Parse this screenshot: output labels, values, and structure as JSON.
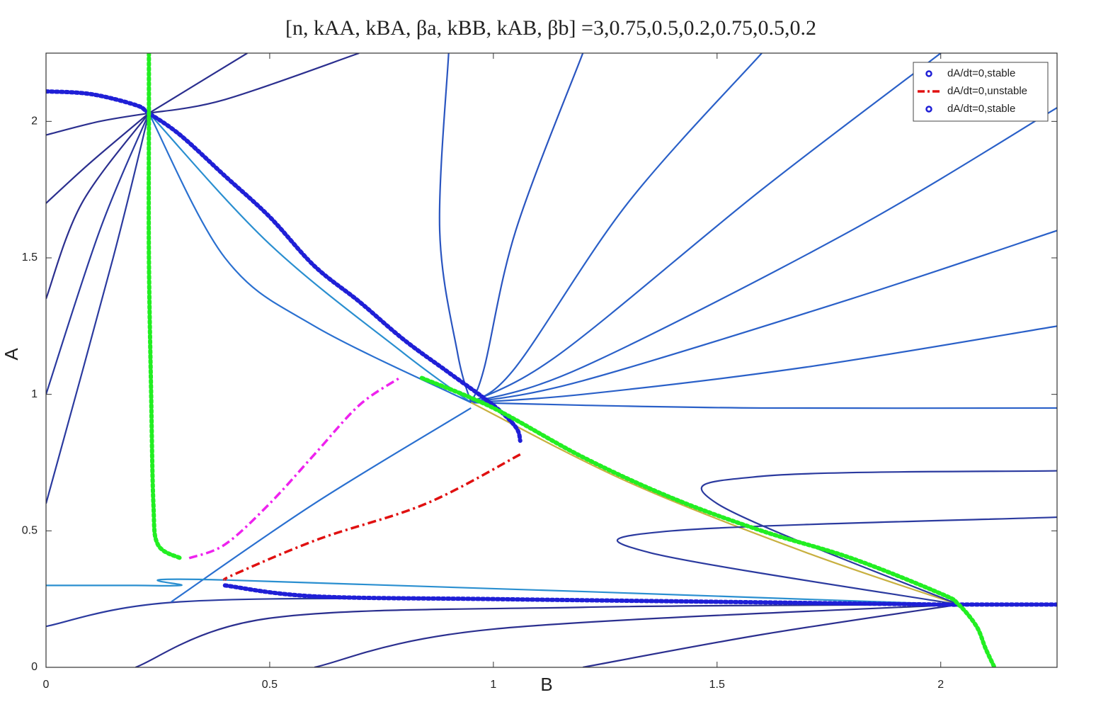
{
  "chart_data": {
    "type": "phase-portrait",
    "title": "[n, kAA, kBA, βa, kBB, kAB, βb] =3,0.75,0.5,0.2,0.75,0.5,0.2",
    "x_label": "B",
    "y_label": "A",
    "xlim": [
      0,
      2.26
    ],
    "ylim": [
      0,
      2.25
    ],
    "xticks": [
      0,
      0.5,
      1,
      1.5,
      2
    ],
    "yticks": [
      0,
      0.5,
      1,
      1.5,
      2
    ],
    "grid": false,
    "legend": "upper right",
    "series": [
      {
        "name": "dA/dt=0,stable",
        "color": "#1f1fd6",
        "style": "circles",
        "x": [
          0,
          0.1,
          0.2,
          0.23,
          0.3,
          0.4,
          0.5,
          0.6,
          0.7,
          0.8,
          0.9,
          1.0,
          1.05,
          1.06
        ],
        "y": [
          2.11,
          2.1,
          2.06,
          2.03,
          1.95,
          1.8,
          1.65,
          1.47,
          1.34,
          1.2,
          1.08,
          0.96,
          0.88,
          0.83
        ]
      },
      {
        "name": "dA/dt=0,unstable",
        "color": "#e01010",
        "style": "dashdot",
        "x": [
          1.06,
          0.85,
          0.61,
          0.42,
          0.4
        ],
        "y": [
          0.78,
          0.6,
          0.47,
          0.34,
          0.32
        ]
      },
      {
        "name": "dA/dt=0,stable",
        "color": "#1f1fd6",
        "style": "circles",
        "x": [
          0.4,
          0.6,
          1.0,
          1.5,
          2.0,
          2.04,
          2.26
        ],
        "y": [
          0.3,
          0.26,
          0.25,
          0.24,
          0.23,
          0.23,
          0.23
        ]
      },
      {
        "color": "#22ee22",
        "style": "circles",
        "x": [
          0.23,
          0.23,
          0.23,
          0.235,
          0.24,
          0.25,
          0.3
        ],
        "y": [
          2.25,
          2.03,
          1.5,
          1.0,
          0.6,
          0.45,
          0.4
        ]
      },
      {
        "color": "#22ee22",
        "style": "circles",
        "x": [
          0.84,
          1.0,
          1.2,
          1.4,
          1.6,
          1.8,
          2.0,
          2.04,
          2.08,
          2.1,
          2.12
        ],
        "y": [
          1.06,
          0.95,
          0.77,
          0.62,
          0.5,
          0.4,
          0.27,
          0.23,
          0.15,
          0.07,
          0
        ]
      },
      {
        "color": "#ee22ee",
        "style": "dashdot",
        "x": [
          0.32,
          0.4,
          0.5,
          0.6,
          0.7,
          0.79
        ],
        "y": [
          0.4,
          0.45,
          0.6,
          0.78,
          0.96,
          1.06
        ]
      }
    ],
    "streamlines": [
      {
        "color": "#2b2f8f",
        "x": [
          0,
          0.12,
          0.23
        ],
        "y": [
          1.95,
          2.0,
          2.03
        ]
      },
      {
        "color": "#2b2f8f",
        "x": [
          0,
          0.1,
          0.23
        ],
        "y": [
          1.7,
          1.85,
          2.03
        ]
      },
      {
        "color": "#2b2f8f",
        "x": [
          0,
          0.08,
          0.23
        ],
        "y": [
          1.35,
          1.7,
          2.03
        ]
      },
      {
        "color": "#2b3a9f",
        "x": [
          0,
          0.12,
          0.23
        ],
        "y": [
          1.0,
          1.6,
          2.03
        ]
      },
      {
        "color": "#2b3a9f",
        "x": [
          0,
          0.15,
          0.23
        ],
        "y": [
          0.6,
          1.5,
          2.03
        ]
      },
      {
        "color": "#2b2f8f",
        "x": [
          0.45,
          0.3,
          0.23
        ],
        "y": [
          2.25,
          2.1,
          2.03
        ]
      },
      {
        "color": "#2b2f8f",
        "x": [
          0.7,
          0.4,
          0.23
        ],
        "y": [
          2.25,
          2.08,
          2.03
        ]
      },
      {
        "color": "#2a8fd0",
        "x": [
          0.23,
          0.5,
          0.8,
          0.95
        ],
        "y": [
          2.03,
          1.55,
          1.15,
          0.97
        ]
      },
      {
        "color": "#2a70d0",
        "x": [
          0.23,
          0.4,
          0.6,
          0.95
        ],
        "y": [
          2.03,
          1.5,
          1.25,
          0.97
        ]
      },
      {
        "color": "#2a55c0",
        "x": [
          0.9,
          0.88,
          0.92,
          0.95
        ],
        "y": [
          2.25,
          1.6,
          1.15,
          0.97
        ]
      },
      {
        "color": "#2a55c0",
        "x": [
          1.2,
          1.05,
          0.98,
          0.95
        ],
        "y": [
          2.25,
          1.6,
          1.1,
          0.97
        ]
      },
      {
        "color": "#2a60c8",
        "x": [
          1.6,
          1.3,
          1.05,
          0.95
        ],
        "y": [
          2.25,
          1.7,
          1.1,
          0.97
        ]
      },
      {
        "color": "#2a60c8",
        "x": [
          2.0,
          1.6,
          1.15,
          0.95
        ],
        "y": [
          2.25,
          1.75,
          1.15,
          0.97
        ]
      },
      {
        "color": "#2a60c8",
        "x": [
          2.26,
          1.8,
          1.2,
          0.95
        ],
        "y": [
          2.05,
          1.6,
          1.1,
          0.97
        ]
      },
      {
        "color": "#2a60c8",
        "x": [
          2.26,
          1.8,
          1.2,
          0.95
        ],
        "y": [
          1.6,
          1.35,
          1.05,
          0.97
        ]
      },
      {
        "color": "#2a60c8",
        "x": [
          2.26,
          1.7,
          1.2,
          0.95
        ],
        "y": [
          1.25,
          1.1,
          1.0,
          0.97
        ]
      },
      {
        "color": "#2a60c8",
        "x": [
          2.26,
          1.6,
          1.2,
          0.95
        ],
        "y": [
          0.95,
          0.95,
          0.96,
          0.97
        ]
      },
      {
        "color": "#c8b040",
        "x": [
          0.95,
          1.3,
          1.7,
          2.04
        ],
        "y": [
          0.97,
          0.68,
          0.42,
          0.23
        ]
      },
      {
        "color": "#2b3a9f",
        "x": [
          2.26,
          1.6,
          1.5,
          2.04
        ],
        "y": [
          0.72,
          0.7,
          0.6,
          0.23
        ]
      },
      {
        "color": "#2b3a9f",
        "x": [
          2.26,
          1.4,
          1.35,
          2.04
        ],
        "y": [
          0.55,
          0.5,
          0.42,
          0.23
        ]
      },
      {
        "color": "#2b2f8f",
        "x": [
          0.2,
          0.5,
          1.2,
          2.04
        ],
        "y": [
          0,
          0.18,
          0.22,
          0.23
        ]
      },
      {
        "color": "#2b2f8f",
        "x": [
          0.6,
          1.0,
          2.04
        ],
        "y": [
          0,
          0.14,
          0.23
        ]
      },
      {
        "color": "#2b2f8f",
        "x": [
          1.2,
          1.6,
          2.04
        ],
        "y": [
          0,
          0.12,
          0.23
        ]
      },
      {
        "color": "#2b3a9f",
        "x": [
          0,
          0.3,
          1.0,
          2.04
        ],
        "y": [
          0.15,
          0.24,
          0.25,
          0.23
        ]
      },
      {
        "color": "#2a70d0",
        "x": [
          0.28,
          0.6,
          0.95
        ],
        "y": [
          0.24,
          0.6,
          0.95
        ]
      },
      {
        "color": "#2a8fd0",
        "x": [
          0,
          0.2,
          0.3,
          0.4,
          2.04
        ],
        "y": [
          0.3,
          0.3,
          0.3,
          0.32,
          0.23
        ]
      }
    ]
  }
}
